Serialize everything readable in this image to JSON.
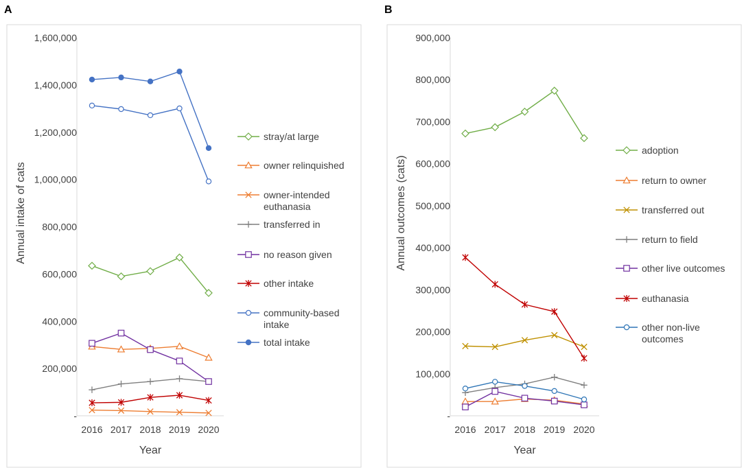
{
  "panels": [
    {
      "label": "A"
    },
    {
      "label": "B"
    }
  ],
  "chart_data": [
    {
      "type": "line",
      "title": "",
      "xlabel": "Year",
      "ylabel": "Annual intake of cats",
      "categories": [
        "2016",
        "2017",
        "2018",
        "2019",
        "2020"
      ],
      "ylim": [
        0,
        1600000
      ],
      "yticks": [
        0,
        200000,
        400000,
        600000,
        800000,
        1000000,
        1200000,
        1400000,
        1600000
      ],
      "ytick_labels": [
        "-",
        "200,000",
        "400,000",
        "600,000",
        "800,000",
        "1,000,000",
        "1,200,000",
        "1,400,000",
        "1,600,000"
      ],
      "grid": false,
      "legend": "right",
      "series": [
        {
          "name": "stray/at large",
          "label_lines": [
            "stray/at large"
          ],
          "color": "#70ad47",
          "marker": "diamond",
          "values": [
            635000,
            590000,
            612000,
            670000,
            520000
          ]
        },
        {
          "name": "owner relinquished",
          "label_lines": [
            "owner relinquished"
          ],
          "color": "#ed7d31",
          "marker": "triangle",
          "values": [
            293000,
            281000,
            285000,
            294000,
            246000
          ]
        },
        {
          "name": "owner-intended euthanasia",
          "label_lines": [
            "owner-intended",
            "euthanasia"
          ],
          "color": "#ed7d31",
          "marker": "x",
          "values": [
            24000,
            22000,
            18000,
            15000,
            12000
          ]
        },
        {
          "name": "transferred in",
          "label_lines": [
            "transferred in"
          ],
          "color": "#7f7f7f",
          "marker": "plus",
          "values": [
            110000,
            135000,
            145000,
            157000,
            145000
          ]
        },
        {
          "name": "no reason given",
          "label_lines": [
            "no reason given"
          ],
          "color": "#7030a0",
          "marker": "square",
          "values": [
            307000,
            350000,
            280000,
            232000,
            145000
          ]
        },
        {
          "name": "other intake",
          "label_lines": [
            "other intake"
          ],
          "color": "#c00000",
          "marker": "star",
          "values": [
            55000,
            57000,
            78000,
            87000,
            65000
          ]
        },
        {
          "name": "community-based intake",
          "label_lines": [
            "community-based",
            "intake"
          ],
          "color": "#4472c4",
          "marker": "circle-open",
          "values": [
            1313000,
            1298000,
            1272000,
            1301000,
            992000
          ]
        },
        {
          "name": "total intake",
          "label_lines": [
            "total intake"
          ],
          "color": "#4472c4",
          "marker": "circle-filled",
          "values": [
            1423000,
            1432000,
            1415000,
            1457000,
            1133000
          ]
        }
      ]
    },
    {
      "type": "line",
      "title": "",
      "xlabel": "Year",
      "ylabel": "Annual outcomes (cats)",
      "categories": [
        "2016",
        "2017",
        "2018",
        "2019",
        "2020"
      ],
      "ylim": [
        0,
        900000
      ],
      "yticks": [
        0,
        100000,
        200000,
        300000,
        400000,
        500000,
        600000,
        700000,
        800000,
        900000
      ],
      "ytick_labels": [
        "-",
        "100,000",
        "200,000",
        "300,000",
        "400,000",
        "500,000",
        "600,000",
        "700,000",
        "800,000",
        "900,000"
      ],
      "grid": false,
      "legend": "right",
      "series": [
        {
          "name": "adoption",
          "label_lines": [
            "adoption"
          ],
          "color": "#70ad47",
          "marker": "diamond",
          "values": [
            672000,
            687000,
            724000,
            774000,
            661000
          ]
        },
        {
          "name": "return to owner",
          "label_lines": [
            "return to owner"
          ],
          "color": "#ed7d31",
          "marker": "triangle",
          "values": [
            34000,
            34000,
            40000,
            37000,
            28000
          ]
        },
        {
          "name": "transferred out",
          "label_lines": [
            "transferred out"
          ],
          "color": "#bf9000",
          "marker": "x",
          "values": [
            166000,
            164000,
            180000,
            192000,
            164000
          ]
        },
        {
          "name": "return to field",
          "label_lines": [
            "return to field"
          ],
          "color": "#7f7f7f",
          "marker": "plus",
          "values": [
            55000,
            67000,
            76000,
            92000,
            73000
          ]
        },
        {
          "name": "other live outcomes",
          "label_lines": [
            "other live outcomes"
          ],
          "color": "#7030a0",
          "marker": "square",
          "values": [
            21000,
            58000,
            42000,
            35000,
            26000
          ]
        },
        {
          "name": "euthanasia",
          "label_lines": [
            "euthanasia"
          ],
          "color": "#c00000",
          "marker": "star",
          "values": [
            377000,
            313000,
            265000,
            248000,
            137000
          ]
        },
        {
          "name": "other non-live outcomes",
          "label_lines": [
            "other non-live",
            "outcomes"
          ],
          "color": "#2e75b6",
          "marker": "circle-open",
          "values": [
            65000,
            81000,
            71000,
            59000,
            39000
          ]
        }
      ]
    }
  ]
}
